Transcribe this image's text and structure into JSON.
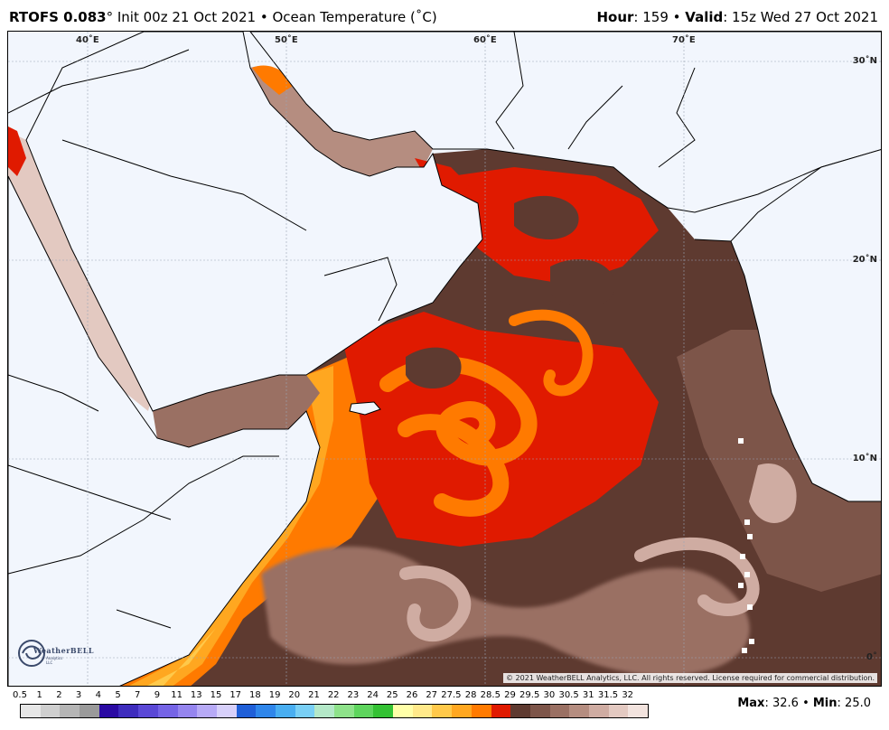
{
  "header": {
    "model": "RTOFS 0.083",
    "degree_mark": "°",
    "init": "Init 00z 21 Oct 2021",
    "separator": "•",
    "field": "Ocean Temperature (˚C)",
    "hour_label": "Hour",
    "hour_value": ": 159",
    "valid_label": "Valid",
    "valid_value": ": 15z Wed 27 Oct 2021"
  },
  "map": {
    "lon_labels": [
      "40˚E",
      "50˚E",
      "60˚E",
      "70˚E"
    ],
    "lat_labels": [
      "30˚N",
      "20˚N",
      "10˚N",
      "0˚"
    ],
    "copyright": "© 2021 WeatherBELL Analytics, LLC. All rights reserved. License required for commercial distribution.",
    "logo_text": "WeatherBELL",
    "logo_sub": "Analytics LLC"
  },
  "colorbar": {
    "labels": [
      "0.5",
      "1",
      "2",
      "3",
      "4",
      "5",
      "7",
      "9",
      "11",
      "13",
      "15",
      "17",
      "18",
      "19",
      "20",
      "21",
      "22",
      "23",
      "24",
      "25",
      "26",
      "27",
      "27.5",
      "28",
      "28.5",
      "29",
      "29.5",
      "30",
      "30.5",
      "31",
      "31.5",
      "32"
    ],
    "colors": [
      "#e6e6e6",
      "#cfcfcf",
      "#b5b5b5",
      "#9a9a9a",
      "#2a0aa3",
      "#3e2cbd",
      "#5a48d6",
      "#7564e6",
      "#9585ef",
      "#b7aaf6",
      "#d7d0fa",
      "#1f5fd8",
      "#2f86ea",
      "#49aef1",
      "#79cff5",
      "#b4e8c8",
      "#8ee28a",
      "#5ed55d",
      "#34c234",
      "#ffffa8",
      "#ffe98a",
      "#ffc94a",
      "#ffa720",
      "#ff7a00",
      "#e01a00",
      "#5e3a30",
      "#7d5549",
      "#9a7063",
      "#b58d80",
      "#cfaca2",
      "#e3c9c1",
      "#f2e3de"
    ],
    "max_label": "Max",
    "max_value": ": 32.6",
    "min_label": "Min",
    "min_value": ": 25.0"
  }
}
